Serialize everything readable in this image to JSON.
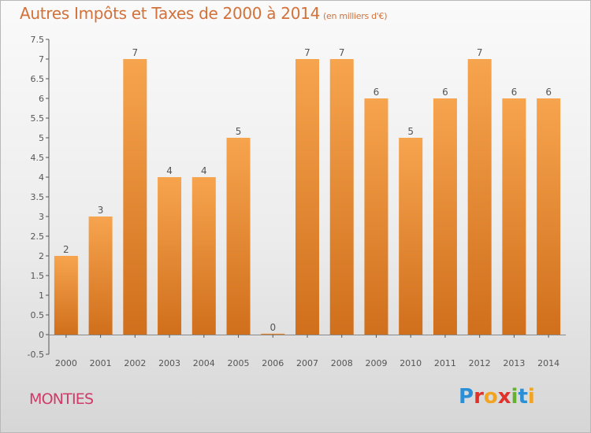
{
  "title": "Autres Impôts et Taxes de 2000 à 2014",
  "title_unit": "(en milliers d'€)",
  "commune": "MONTIES",
  "brand": "Proxiti",
  "colors": {
    "bar_light": "#f7a44e",
    "bar_dark": "#d06f1c",
    "title": "#d2713a",
    "commune": "#cf3a68"
  },
  "chart_data": {
    "type": "bar",
    "title": "Autres Impôts et Taxes de 2000 à 2014",
    "categories": [
      "2000",
      "2001",
      "2002",
      "2003",
      "2004",
      "2005",
      "2006",
      "2007",
      "2008",
      "2009",
      "2010",
      "2011",
      "2012",
      "2013",
      "2014"
    ],
    "values": [
      2,
      3,
      7,
      4,
      4,
      5,
      0,
      7,
      7,
      6,
      5,
      6,
      7,
      6,
      6
    ],
    "ylim": [
      -0.5,
      7.5
    ],
    "yticks": [
      "-0.5",
      "0",
      "0.5",
      "1",
      "1.5",
      "2",
      "2.5",
      "3",
      "3.5",
      "4",
      "4.5",
      "5",
      "5.5",
      "6",
      "6.5",
      "7",
      "7.5"
    ],
    "grid": false
  }
}
